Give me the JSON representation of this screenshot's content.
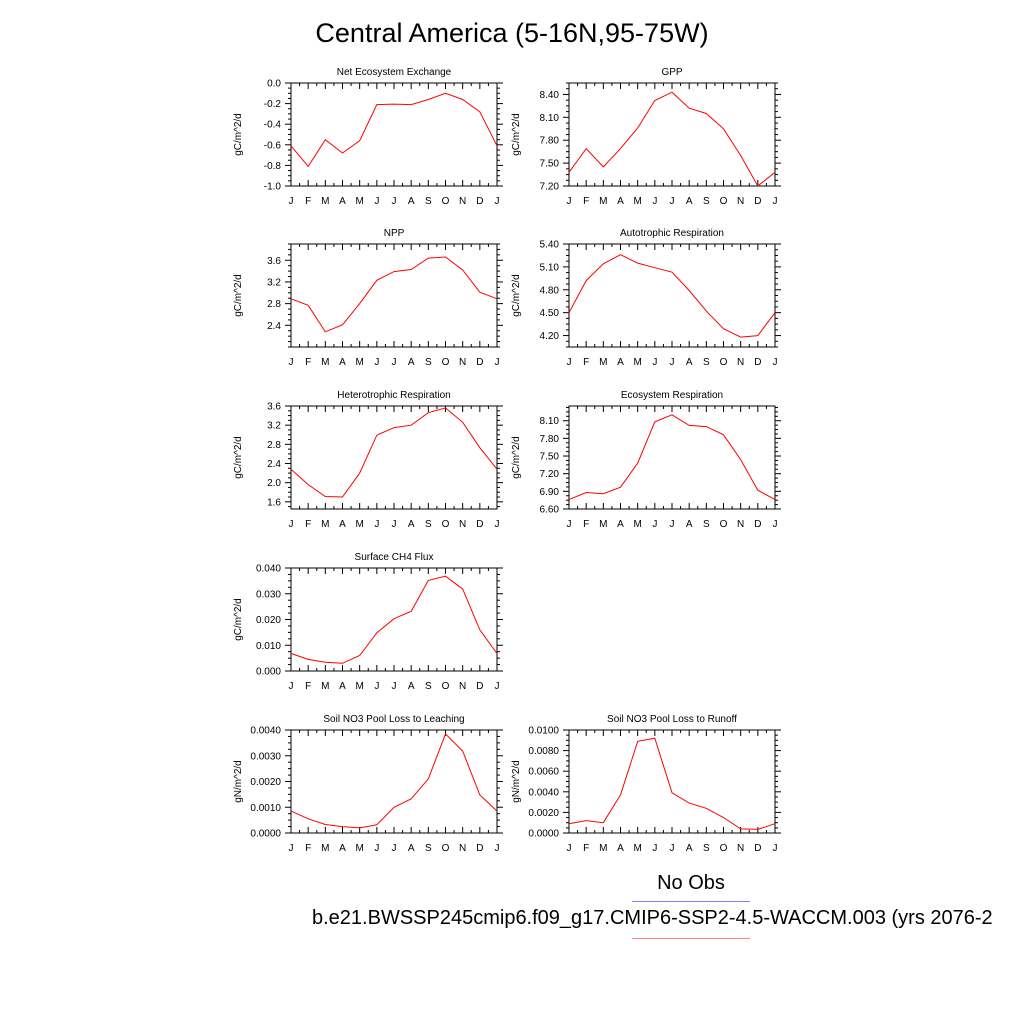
{
  "title": "Central America (5-16N,95-75W)",
  "legend": {
    "obs_label": "No Obs",
    "case_label": "b.e21.BWSSP245cmip6.f09_g17.CMIP6-SSP2-4.5-WACCM.003 (yrs 2076-2",
    "obs_color": "#8080ff",
    "case_color": "#ff8080"
  },
  "line_color": "#ff0000",
  "chart_data": [
    {
      "type": "line",
      "title": "Net Ecosystem Exchange",
      "ylabel": "gC/m^2/d",
      "xlabel": "",
      "categories": [
        "J",
        "F",
        "M",
        "A",
        "M",
        "J",
        "J",
        "A",
        "S",
        "O",
        "N",
        "D",
        "J"
      ],
      "ylim": [
        -1.0,
        0.0
      ],
      "yticks": [
        -1.0,
        -0.8,
        -0.6,
        -0.4,
        -0.2,
        0.0
      ],
      "ytick_labels": [
        "-1.0",
        "-0.8",
        "-0.6",
        "-0.4",
        "-0.2",
        "0.0"
      ],
      "series": [
        {
          "name": "case",
          "values": [
            -0.61,
            -0.81,
            -0.55,
            -0.68,
            -0.56,
            -0.21,
            -0.205,
            -0.21,
            -0.16,
            -0.1,
            -0.16,
            -0.28,
            -0.61
          ]
        }
      ]
    },
    {
      "type": "line",
      "title": "GPP",
      "ylabel": "gC/m^2/d",
      "xlabel": "",
      "categories": [
        "J",
        "F",
        "M",
        "A",
        "M",
        "J",
        "J",
        "A",
        "S",
        "O",
        "N",
        "D",
        "J"
      ],
      "ylim": [
        7.2,
        8.55
      ],
      "yticks": [
        7.2,
        7.5,
        7.8,
        8.1,
        8.4
      ],
      "ytick_labels": [
        "7.20",
        "7.50",
        "7.80",
        "8.10",
        "8.40"
      ],
      "series": [
        {
          "name": "case",
          "values": [
            7.38,
            7.69,
            7.45,
            7.69,
            7.96,
            8.32,
            8.43,
            8.22,
            8.15,
            7.95,
            7.6,
            7.2,
            7.38
          ]
        }
      ]
    },
    {
      "type": "line",
      "title": "NPP",
      "ylabel": "gC/m^2/d",
      "xlabel": "",
      "categories": [
        "J",
        "F",
        "M",
        "A",
        "M",
        "J",
        "J",
        "A",
        "S",
        "O",
        "N",
        "D",
        "J"
      ],
      "ylim": [
        2.0,
        3.9
      ],
      "yticks": [
        2.4,
        2.8,
        3.2,
        3.6
      ],
      "ytick_labels": [
        "2.4",
        "2.8",
        "3.2",
        "3.6"
      ],
      "series": [
        {
          "name": "case",
          "values": [
            2.89,
            2.77,
            2.28,
            2.41,
            2.8,
            3.23,
            3.39,
            3.43,
            3.64,
            3.66,
            3.42,
            3.01,
            2.89
          ]
        }
      ]
    },
    {
      "type": "line",
      "title": "Autotrophic Respiration",
      "ylabel": "gC/m^2/d",
      "xlabel": "",
      "categories": [
        "J",
        "F",
        "M",
        "A",
        "M",
        "J",
        "J",
        "A",
        "S",
        "O",
        "N",
        "D",
        "J"
      ],
      "ylim": [
        4.05,
        5.4
      ],
      "yticks": [
        4.2,
        4.5,
        4.8,
        5.1,
        5.4
      ],
      "ytick_labels": [
        "4.20",
        "4.50",
        "4.80",
        "5.10",
        "5.40"
      ],
      "series": [
        {
          "name": "case",
          "values": [
            4.5,
            4.92,
            5.14,
            5.26,
            5.15,
            5.09,
            5.03,
            4.79,
            4.52,
            4.29,
            4.18,
            4.2,
            4.5
          ]
        }
      ]
    },
    {
      "type": "line",
      "title": "Heterotrophic Respiration",
      "ylabel": "gC/m^2/d",
      "xlabel": "",
      "categories": [
        "J",
        "F",
        "M",
        "A",
        "M",
        "J",
        "J",
        "A",
        "S",
        "O",
        "N",
        "D",
        "J"
      ],
      "ylim": [
        1.45,
        3.6
      ],
      "yticks": [
        1.6,
        2.0,
        2.4,
        2.8,
        3.2,
        3.6
      ],
      "ytick_labels": [
        "1.6",
        "2.0",
        "2.4",
        "2.8",
        "3.2",
        "3.6"
      ],
      "series": [
        {
          "name": "case",
          "values": [
            2.28,
            1.96,
            1.71,
            1.7,
            2.2,
            2.99,
            3.15,
            3.2,
            3.46,
            3.56,
            3.26,
            2.73,
            2.28
          ]
        }
      ]
    },
    {
      "type": "line",
      "title": "Ecosystem Respiration",
      "ylabel": "gC/m^2/d",
      "xlabel": "",
      "categories": [
        "J",
        "F",
        "M",
        "A",
        "M",
        "J",
        "J",
        "A",
        "S",
        "O",
        "N",
        "D",
        "J"
      ],
      "ylim": [
        6.6,
        8.35
      ],
      "yticks": [
        6.6,
        6.9,
        7.2,
        7.5,
        7.8,
        8.1
      ],
      "ytick_labels": [
        "6.60",
        "6.90",
        "7.20",
        "7.50",
        "7.80",
        "8.10"
      ],
      "series": [
        {
          "name": "case",
          "values": [
            6.76,
            6.88,
            6.86,
            6.97,
            7.38,
            8.08,
            8.2,
            8.02,
            8.0,
            7.86,
            7.44,
            6.92,
            6.76
          ]
        }
      ]
    },
    {
      "type": "line",
      "title": "Surface CH4 Flux",
      "ylabel": "gC/m^2/d",
      "xlabel": "",
      "categories": [
        "J",
        "F",
        "M",
        "A",
        "M",
        "J",
        "J",
        "A",
        "S",
        "O",
        "N",
        "D",
        "J"
      ],
      "ylim": [
        0.0,
        0.04
      ],
      "yticks": [
        0.0,
        0.01,
        0.02,
        0.03,
        0.04
      ],
      "ytick_labels": [
        "0.000",
        "0.010",
        "0.020",
        "0.030",
        "0.040"
      ],
      "series": [
        {
          "name": "case",
          "values": [
            0.0068,
            0.0045,
            0.0034,
            0.003,
            0.006,
            0.0148,
            0.0203,
            0.0232,
            0.0352,
            0.0368,
            0.0318,
            0.016,
            0.0068
          ]
        }
      ]
    },
    {
      "type": "line",
      "title": "Soil NO3 Pool Loss to Leaching",
      "ylabel": "gN/m^2/d",
      "xlabel": "",
      "categories": [
        "J",
        "F",
        "M",
        "A",
        "M",
        "J",
        "J",
        "A",
        "S",
        "O",
        "N",
        "D",
        "J"
      ],
      "ylim": [
        0.0,
        0.004
      ],
      "yticks": [
        0.0,
        0.001,
        0.002,
        0.003,
        0.004
      ],
      "ytick_labels": [
        "0.0000",
        "0.0010",
        "0.0020",
        "0.0030",
        "0.0040"
      ],
      "series": [
        {
          "name": "case",
          "values": [
            0.00085,
            0.00055,
            0.00033,
            0.00025,
            0.0002,
            0.00032,
            0.001,
            0.00133,
            0.0021,
            0.00385,
            0.00318,
            0.00148,
            0.00085
          ]
        }
      ]
    },
    {
      "type": "line",
      "title": "Soil NO3 Pool Loss to Runoff",
      "ylabel": "gN/m^2/d",
      "xlabel": "",
      "categories": [
        "J",
        "F",
        "M",
        "A",
        "M",
        "J",
        "J",
        "A",
        "S",
        "O",
        "N",
        "D",
        "J"
      ],
      "ylim": [
        0.0,
        0.01
      ],
      "yticks": [
        0.0,
        0.002,
        0.004,
        0.006,
        0.008,
        0.01
      ],
      "ytick_labels": [
        "0.0000",
        "0.0020",
        "0.0040",
        "0.0060",
        "0.0080",
        "0.0100"
      ],
      "series": [
        {
          "name": "case",
          "values": [
            0.0009,
            0.0012,
            0.001,
            0.0037,
            0.0089,
            0.0092,
            0.0039,
            0.0029,
            0.0024,
            0.0015,
            0.0004,
            0.00035,
            0.0009
          ]
        }
      ]
    }
  ]
}
